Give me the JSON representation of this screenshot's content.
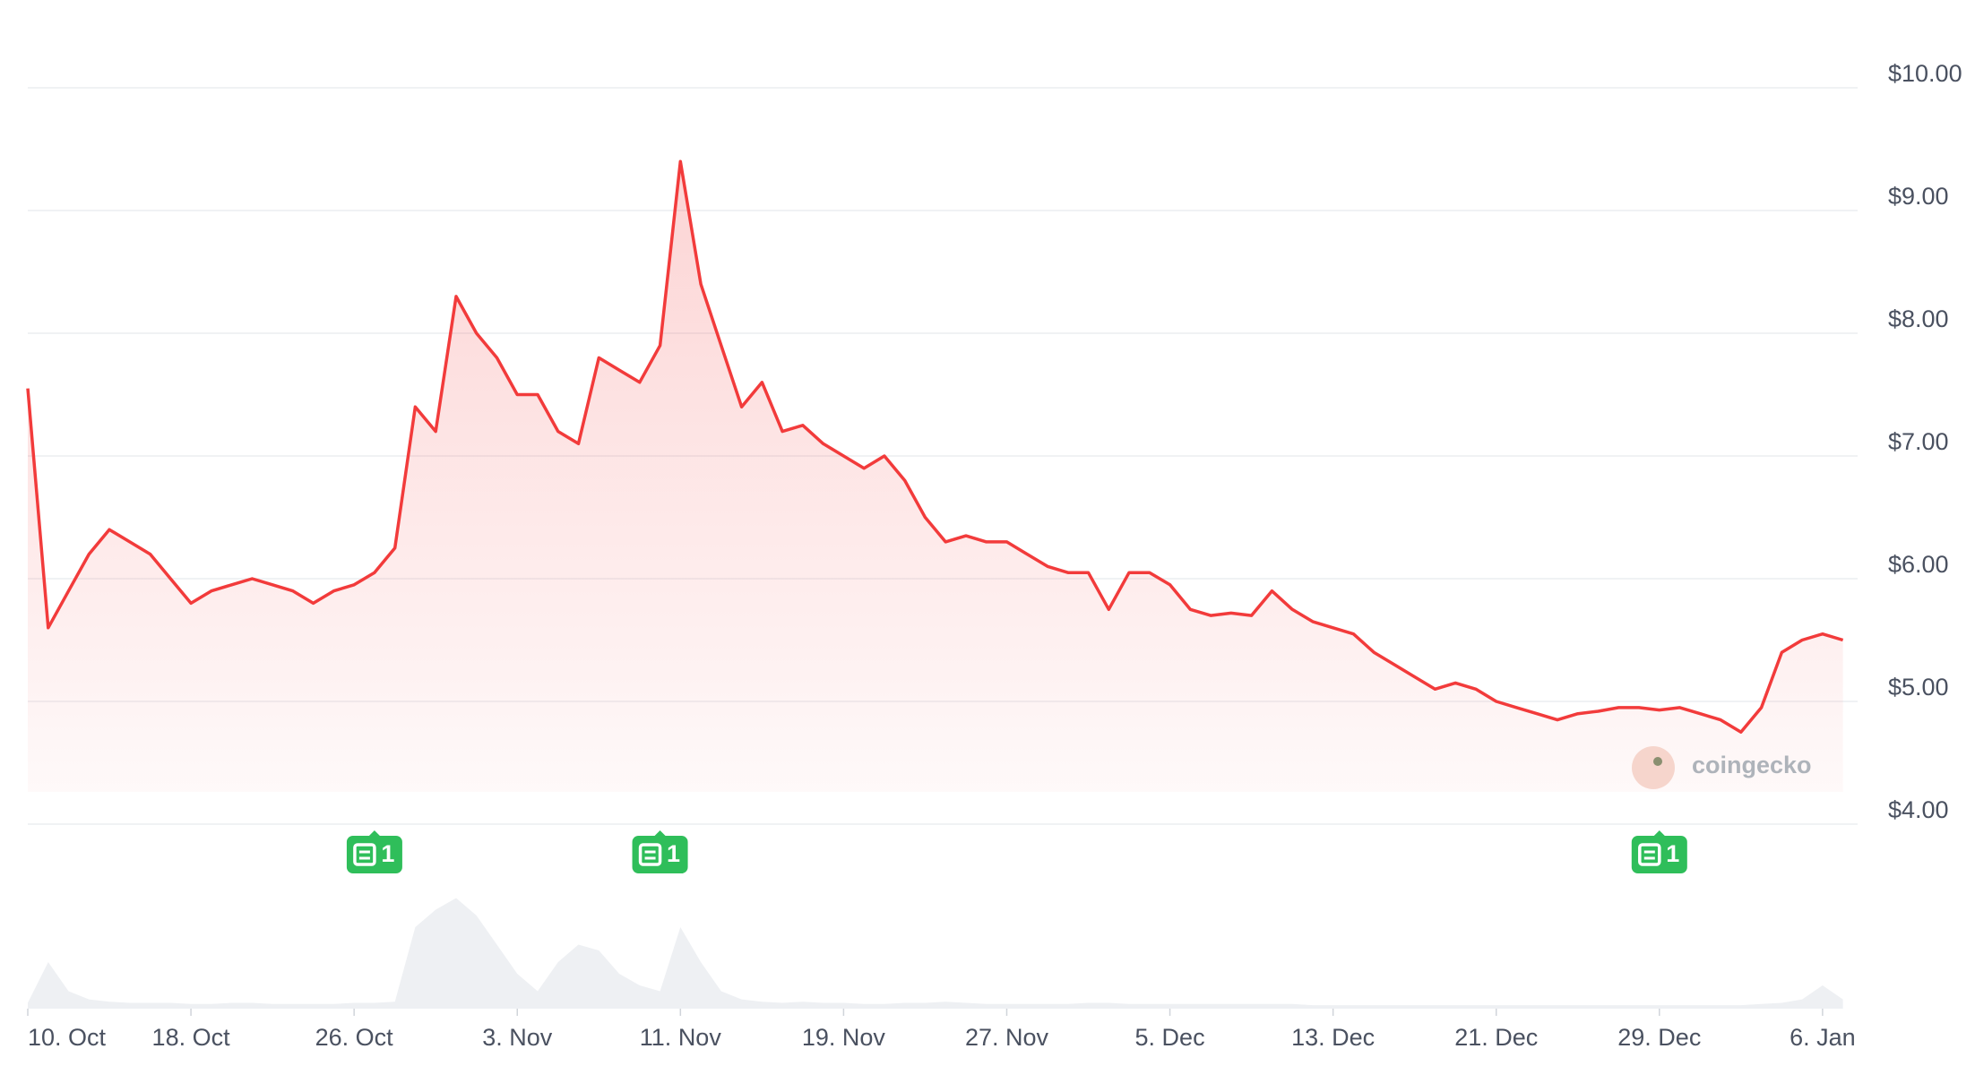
{
  "chart_data": {
    "type": "line",
    "categories": [
      "10. Oct",
      "11. Oct",
      "12. Oct",
      "13. Oct",
      "14. Oct",
      "15. Oct",
      "16. Oct",
      "17. Oct",
      "18. Oct",
      "19. Oct",
      "20. Oct",
      "21. Oct",
      "22. Oct",
      "23. Oct",
      "24. Oct",
      "25. Oct",
      "26. Oct",
      "27. Oct",
      "28. Oct",
      "29. Oct",
      "30. Oct",
      "31. Oct",
      "1. Nov",
      "2. Nov",
      "3. Nov",
      "4. Nov",
      "5. Nov",
      "6. Nov",
      "7. Nov",
      "8. Nov",
      "9. Nov",
      "10. Nov",
      "11. Nov",
      "12. Nov",
      "13. Nov",
      "14. Nov",
      "15. Nov",
      "16. Nov",
      "17. Nov",
      "18. Nov",
      "19. Nov",
      "20. Nov",
      "21. Nov",
      "22. Nov",
      "23. Nov",
      "24. Nov",
      "25. Nov",
      "26. Nov",
      "27. Nov",
      "28. Nov",
      "29. Nov",
      "30. Nov",
      "1. Dec",
      "2. Dec",
      "3. Dec",
      "4. Dec",
      "5. Dec",
      "6. Dec",
      "7. Dec",
      "8. Dec",
      "9. Dec",
      "10. Dec",
      "11. Dec",
      "12. Dec",
      "13. Dec",
      "14. Dec",
      "15. Dec",
      "16. Dec",
      "17. Dec",
      "18. Dec",
      "19. Dec",
      "20. Dec",
      "21. Dec",
      "22. Dec",
      "23. Dec",
      "24. Dec",
      "25. Dec",
      "26. Dec",
      "27. Dec",
      "28. Dec",
      "29. Dec",
      "30. Dec",
      "31. Dec",
      "1. Jan",
      "2. Jan",
      "3. Jan",
      "4. Jan",
      "5. Jan",
      "6. Jan",
      "7. Jan"
    ],
    "values": [
      7.55,
      5.6,
      5.9,
      6.2,
      6.4,
      6.3,
      6.2,
      6.0,
      5.8,
      5.9,
      5.95,
      6.0,
      5.95,
      5.9,
      5.8,
      5.9,
      5.95,
      6.05,
      6.25,
      7.4,
      7.2,
      8.3,
      8.0,
      7.8,
      7.5,
      7.5,
      7.2,
      7.1,
      7.8,
      7.7,
      7.6,
      7.9,
      9.4,
      8.4,
      7.9,
      7.4,
      7.6,
      7.2,
      7.25,
      7.1,
      7.0,
      6.9,
      7.0,
      6.8,
      6.5,
      6.3,
      6.35,
      6.3,
      6.3,
      6.2,
      6.1,
      6.05,
      6.05,
      5.75,
      6.05,
      6.05,
      5.95,
      5.75,
      5.7,
      5.72,
      5.7,
      5.9,
      5.75,
      5.65,
      5.6,
      5.55,
      5.4,
      5.3,
      5.2,
      5.1,
      5.15,
      5.1,
      5.0,
      4.95,
      4.9,
      4.85,
      4.9,
      4.92,
      4.95,
      4.95,
      4.93,
      4.95,
      4.9,
      4.85,
      4.75,
      4.95,
      5.4,
      5.5,
      5.55,
      5.5
    ],
    "color": "#f23b3b",
    "volume": [
      5,
      40,
      15,
      8,
      6,
      5,
      5,
      5,
      4,
      4,
      5,
      5,
      4,
      4,
      4,
      4,
      5,
      5,
      6,
      70,
      85,
      95,
      80,
      55,
      30,
      15,
      40,
      55,
      50,
      30,
      20,
      15,
      70,
      40,
      15,
      8,
      6,
      5,
      6,
      5,
      5,
      4,
      4,
      5,
      5,
      6,
      5,
      4,
      4,
      4,
      4,
      4,
      5,
      5,
      4,
      4,
      4,
      4,
      4,
      4,
      4,
      4,
      4,
      3,
      3,
      3,
      3,
      3,
      3,
      3,
      3,
      3,
      3,
      3,
      3,
      3,
      3,
      3,
      3,
      3,
      3,
      3,
      3,
      3,
      3,
      4,
      5,
      8,
      20,
      8
    ],
    "volume_color": "#eef0f3",
    "volume_ylim": [
      0,
      100
    ],
    "xticks": [
      "10. Oct",
      "18. Oct",
      "26. Oct",
      "3. Nov",
      "11. Nov",
      "19. Nov",
      "27. Nov",
      "5. Dec",
      "13. Dec",
      "21. Dec",
      "29. Dec",
      "6. Jan"
    ],
    "ylim": [
      4,
      10
    ],
    "yticks": [
      {
        "value": 4,
        "label": "$4.00"
      },
      {
        "value": 5,
        "label": "$5.00"
      },
      {
        "value": 6,
        "label": "$6.00"
      },
      {
        "value": 7,
        "label": "$7.00"
      },
      {
        "value": 8,
        "label": "$8.00"
      },
      {
        "value": 9,
        "label": "$9.00"
      },
      {
        "value": 10,
        "label": "$10.00"
      }
    ],
    "grid": true,
    "news": [
      {
        "date": "27. Oct",
        "count": 1
      },
      {
        "date": "10. Nov",
        "count": 1
      },
      {
        "date": "29. Dec",
        "count": 1
      }
    ],
    "watermark": "coingecko"
  }
}
